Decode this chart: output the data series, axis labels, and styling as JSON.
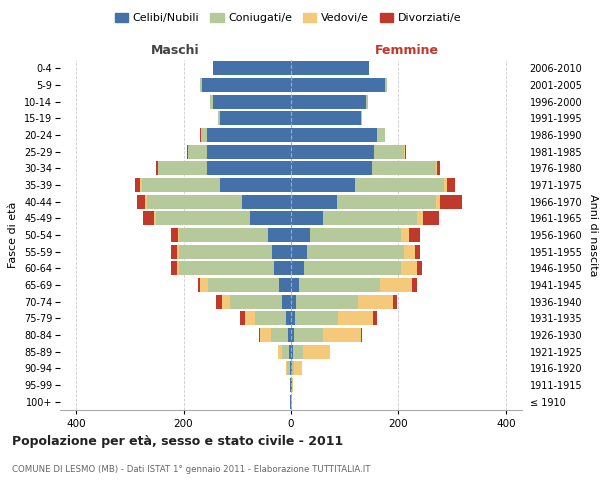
{
  "age_groups": [
    "100+",
    "95-99",
    "90-94",
    "85-89",
    "80-84",
    "75-79",
    "70-74",
    "65-69",
    "60-64",
    "55-59",
    "50-54",
    "45-49",
    "40-44",
    "35-39",
    "30-34",
    "25-29",
    "20-24",
    "15-19",
    "10-14",
    "5-9",
    "0-4"
  ],
  "birth_years": [
    "≤ 1910",
    "1911-1915",
    "1916-1920",
    "1921-1925",
    "1926-1930",
    "1931-1935",
    "1936-1940",
    "1941-1945",
    "1946-1950",
    "1951-1955",
    "1956-1960",
    "1961-1965",
    "1966-1970",
    "1971-1975",
    "1976-1980",
    "1981-1985",
    "1986-1990",
    "1991-1995",
    "1996-2000",
    "2001-2005",
    "2006-2010"
  ],
  "colors": {
    "celibi": "#4472a8",
    "coniugati": "#b5c99a",
    "vedovi": "#f5c97a",
    "divorziati": "#c0392b"
  },
  "maschi": {
    "celibi": [
      1,
      1,
      2,
      4,
      6,
      9,
      16,
      22,
      32,
      36,
      42,
      76,
      92,
      132,
      156,
      156,
      156,
      132,
      146,
      166,
      146
    ],
    "coniugati": [
      0,
      0,
      5,
      12,
      32,
      58,
      98,
      132,
      176,
      172,
      166,
      176,
      176,
      146,
      92,
      36,
      12,
      4,
      4,
      4,
      0
    ],
    "vedovi": [
      0,
      0,
      2,
      8,
      20,
      18,
      15,
      15,
      5,
      5,
      3,
      3,
      3,
      3,
      0,
      0,
      0,
      0,
      0,
      0,
      0
    ],
    "divorziati": [
      0,
      0,
      0,
      0,
      2,
      10,
      10,
      5,
      10,
      10,
      12,
      20,
      15,
      10,
      3,
      2,
      2,
      0,
      0,
      0,
      0
    ]
  },
  "femmine": {
    "celibi": [
      0,
      1,
      2,
      3,
      5,
      8,
      10,
      15,
      25,
      30,
      35,
      60,
      85,
      120,
      150,
      155,
      160,
      130,
      140,
      175,
      145
    ],
    "coniugati": [
      0,
      0,
      3,
      20,
      55,
      80,
      115,
      150,
      180,
      180,
      170,
      175,
      185,
      165,
      120,
      55,
      15,
      3,
      3,
      3,
      0
    ],
    "vedovi": [
      1,
      2,
      15,
      50,
      70,
      65,
      65,
      60,
      30,
      20,
      15,
      10,
      8,
      5,
      2,
      2,
      0,
      0,
      0,
      0,
      0
    ],
    "divorziati": [
      0,
      0,
      0,
      0,
      3,
      8,
      8,
      10,
      8,
      10,
      20,
      30,
      40,
      15,
      5,
      2,
      0,
      0,
      0,
      0,
      0
    ]
  },
  "title": "Popolazione per età, sesso e stato civile - 2011",
  "subtitle": "COMUNE DI LESMO (MB) - Dati ISTAT 1° gennaio 2011 - Elaborazione TUTTITALIA.IT",
  "xlabel_maschi": "Maschi",
  "xlabel_femmine": "Femmine",
  "ylabel_left": "Fasce di età",
  "ylabel_right": "Anni di nascita",
  "xlim": 430,
  "legend_labels": [
    "Celibi/Nubili",
    "Coniugati/e",
    "Vedovi/e",
    "Divorziati/e"
  ],
  "maschi_color": "#444444",
  "femmine_color": "#c0392b"
}
